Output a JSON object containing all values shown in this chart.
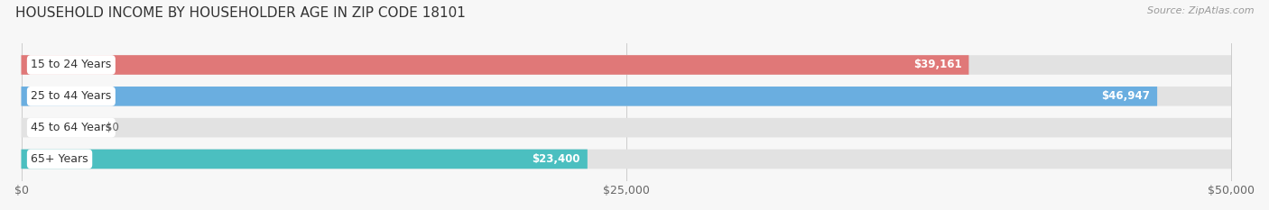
{
  "title": "HOUSEHOLD INCOME BY HOUSEHOLDER AGE IN ZIP CODE 18101",
  "source": "Source: ZipAtlas.com",
  "categories": [
    "15 to 24 Years",
    "25 to 44 Years",
    "45 to 64 Years",
    "65+ Years"
  ],
  "values": [
    39161,
    46947,
    0,
    23400
  ],
  "bar_colors": [
    "#e07878",
    "#6aaee0",
    "#c9a8d4",
    "#4bbfc0"
  ],
  "value_labels": [
    "$39,161",
    "$46,947",
    "$0",
    "$23,400"
  ],
  "xlim": [
    0,
    50000
  ],
  "xticks": [
    0,
    25000,
    50000
  ],
  "xtick_labels": [
    "$0",
    "$25,000",
    "$50,000"
  ],
  "background_color": "#f7f7f7",
  "bar_bg_color": "#e2e2e2",
  "title_fontsize": 11,
  "source_fontsize": 8,
  "label_fontsize": 9,
  "value_fontsize": 8.5
}
